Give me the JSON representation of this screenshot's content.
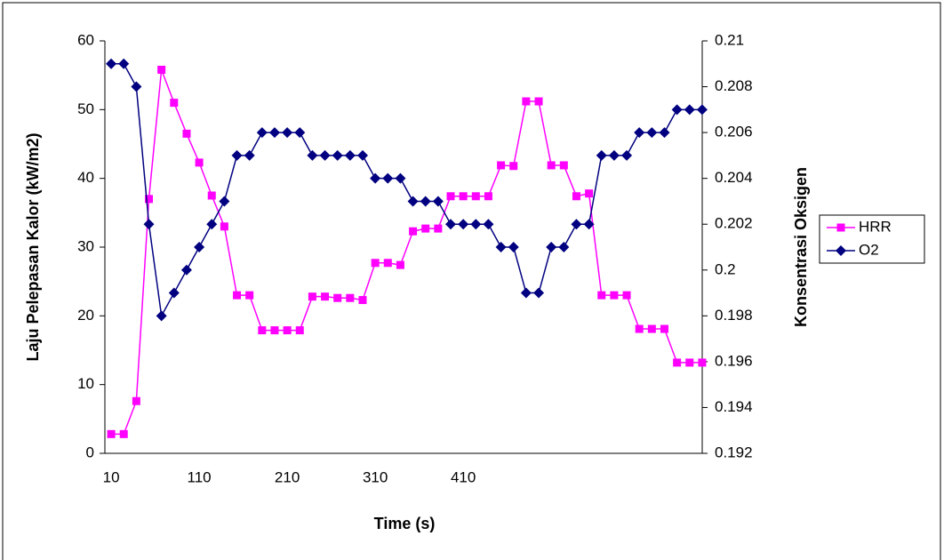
{
  "chart_data": {
    "type": "line",
    "x_label": "Time (s)",
    "y_label": "Laju Pelepasan Kalor (kW/m2)",
    "y2_label": "Konsentrasi Oksigen",
    "categories": [
      10,
      null,
      null,
      null,
      null,
      null,
      null,
      110,
      null,
      null,
      null,
      null,
      null,
      null,
      210,
      null,
      null,
      null,
      null,
      null,
      null,
      310,
      null,
      null,
      null,
      null,
      null,
      null,
      410,
      null,
      null,
      null,
      null,
      null,
      null,
      null,
      null,
      null,
      null,
      null,
      null,
      null,
      null,
      null,
      null,
      null,
      null,
      null
    ],
    "series": [
      {
        "name": "HRR",
        "color": "#ff00ff",
        "marker": "square",
        "values": [
          2.8,
          2.8,
          7.6,
          37,
          55.8,
          51,
          46.5,
          42.3,
          37.5,
          33,
          23,
          23,
          17.9,
          17.9,
          17.9,
          17.9,
          22.8,
          22.8,
          22.6,
          22.6,
          22.3,
          27.7,
          27.7,
          27.4,
          32.3,
          32.7,
          32.7,
          37.4,
          37.4,
          37.4,
          37.4,
          41.9,
          41.8,
          51.2,
          51.2,
          41.9,
          41.9,
          37.4,
          37.8,
          23,
          23,
          23,
          18.1,
          18.1,
          18.1,
          13.2,
          13.2,
          13.2
        ]
      },
      {
        "name": "O2",
        "color": "#000080",
        "marker": "diamond",
        "axis": "y2",
        "values": [
          0.209,
          0.209,
          0.208,
          0.202,
          0.198,
          0.199,
          0.2,
          0.201,
          0.202,
          0.203,
          0.205,
          0.205,
          0.206,
          0.206,
          0.206,
          0.206,
          0.205,
          0.205,
          0.205,
          0.205,
          0.205,
          0.204,
          0.204,
          0.204,
          0.203,
          0.203,
          0.203,
          0.202,
          0.202,
          0.202,
          0.202,
          0.201,
          0.201,
          0.199,
          0.199,
          0.201,
          0.201,
          0.202,
          0.202,
          0.205,
          0.205,
          0.205,
          0.206,
          0.206,
          0.206,
          0.207,
          0.207,
          0.207
        ]
      }
    ],
    "ylim": [
      0,
      60
    ],
    "yticks": [
      0,
      10,
      20,
      30,
      40,
      50,
      60
    ],
    "y2lim": [
      0.192,
      0.21
    ],
    "y2ticks": [
      0.192,
      0.194,
      0.196,
      0.198,
      0.2,
      0.202,
      0.204,
      0.206,
      0.208,
      0.21
    ],
    "grid": false,
    "legend": "right"
  }
}
